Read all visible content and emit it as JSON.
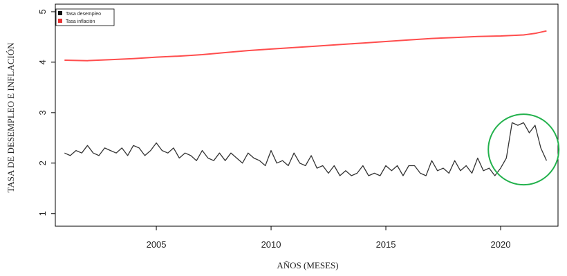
{
  "chart_data": {
    "type": "line",
    "title": "",
    "xlabel": "AÑOS (MESES)",
    "ylabel": "TASA DE DESEMPLEO E INFLACIÓN",
    "xlim": [
      2000.6,
      2022.5
    ],
    "ylim": [
      0.75,
      5.15
    ],
    "x_ticks": [
      2005,
      2010,
      2015,
      2020
    ],
    "y_ticks": [
      1,
      2,
      3,
      4,
      5
    ],
    "x_tick_labels": [
      "2005",
      "2010",
      "2015",
      "2020"
    ],
    "y_tick_labels": [
      "1",
      "2",
      "3",
      "4",
      "5"
    ],
    "grid": false,
    "legend_position": "top-left",
    "series": [
      {
        "name": "Tasa desempleo",
        "color": "#333333",
        "x": [
          2001.0,
          2001.25,
          2001.5,
          2001.75,
          2002.0,
          2002.25,
          2002.5,
          2002.75,
          2003.0,
          2003.25,
          2003.5,
          2003.75,
          2004.0,
          2004.25,
          2004.5,
          2004.75,
          2005.0,
          2005.25,
          2005.5,
          2005.75,
          2006.0,
          2006.25,
          2006.5,
          2006.75,
          2007.0,
          2007.25,
          2007.5,
          2007.75,
          2008.0,
          2008.25,
          2008.5,
          2008.75,
          2009.0,
          2009.25,
          2009.5,
          2009.75,
          2010.0,
          2010.25,
          2010.5,
          2010.75,
          2011.0,
          2011.25,
          2011.5,
          2011.75,
          2012.0,
          2012.25,
          2012.5,
          2012.75,
          2013.0,
          2013.25,
          2013.5,
          2013.75,
          2014.0,
          2014.25,
          2014.5,
          2014.75,
          2015.0,
          2015.25,
          2015.5,
          2015.75,
          2016.0,
          2016.25,
          2016.5,
          2016.75,
          2017.0,
          2017.25,
          2017.5,
          2017.75,
          2018.0,
          2018.25,
          2018.5,
          2018.75,
          2019.0,
          2019.25,
          2019.5,
          2019.75,
          2020.0,
          2020.25,
          2020.5,
          2020.75,
          2021.0,
          2021.25,
          2021.5,
          2021.75,
          2022.0
        ],
        "values": [
          2.2,
          2.15,
          2.25,
          2.2,
          2.35,
          2.2,
          2.15,
          2.3,
          2.25,
          2.2,
          2.3,
          2.15,
          2.35,
          2.3,
          2.15,
          2.25,
          2.4,
          2.25,
          2.2,
          2.3,
          2.1,
          2.2,
          2.15,
          2.05,
          2.25,
          2.1,
          2.05,
          2.2,
          2.05,
          2.2,
          2.1,
          2.0,
          2.2,
          2.1,
          2.05,
          1.95,
          2.25,
          2.0,
          2.05,
          1.95,
          2.2,
          2.0,
          1.95,
          2.15,
          1.9,
          1.95,
          1.8,
          1.95,
          1.75,
          1.85,
          1.75,
          1.8,
          1.95,
          1.75,
          1.8,
          1.75,
          1.95,
          1.85,
          1.95,
          1.75,
          1.95,
          1.95,
          1.8,
          1.75,
          2.05,
          1.85,
          1.9,
          1.8,
          2.05,
          1.85,
          1.95,
          1.8,
          2.1,
          1.85,
          1.9,
          1.75,
          1.9,
          2.1,
          2.8,
          2.75,
          2.8,
          2.6,
          2.75,
          2.3,
          2.05
        ]
      },
      {
        "name": "Tasa inflación",
        "color": "#ff4d4d",
        "x": [
          2001.0,
          2002.0,
          2003.0,
          2004.0,
          2005.0,
          2006.0,
          2007.0,
          2008.0,
          2009.0,
          2010.0,
          2011.0,
          2012.0,
          2013.0,
          2014.0,
          2015.0,
          2016.0,
          2017.0,
          2018.0,
          2019.0,
          2020.0,
          2021.0,
          2021.5,
          2022.0
        ],
        "values": [
          4.04,
          4.03,
          4.05,
          4.07,
          4.1,
          4.12,
          4.15,
          4.19,
          4.23,
          4.26,
          4.29,
          4.32,
          4.35,
          4.38,
          4.41,
          4.44,
          4.47,
          4.49,
          4.51,
          4.52,
          4.54,
          4.57,
          4.62
        ]
      }
    ],
    "annotations": [
      {
        "type": "circle",
        "color": "#22b14c",
        "center_x": 2021.0,
        "center_y": 2.27,
        "note": "highlighted region"
      }
    ]
  }
}
